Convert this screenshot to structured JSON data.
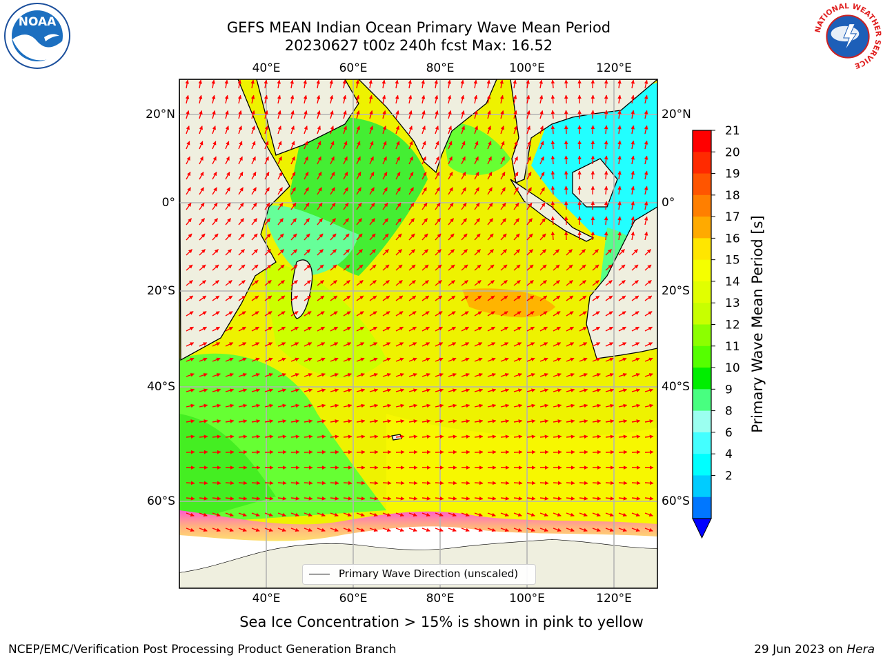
{
  "header": {
    "title_line1": "GEFS MEAN Indian Ocean Primary Wave Mean Period",
    "title_line2": "20230627 t00z 240h fcst   Max: 16.52"
  },
  "logos": {
    "left": "NOAA",
    "right": "NATIONAL WEATHER SERVICE"
  },
  "map": {
    "lon_ticks": [
      "40°E",
      "60°E",
      "80°E",
      "100°E",
      "120°E"
    ],
    "lat_ticks": [
      "20°N",
      "0°",
      "20°S",
      "40°S",
      "60°S"
    ],
    "legend_label": "Primary Wave Direction (unscaled)",
    "max_value": 16.52
  },
  "colorbar": {
    "label": "Primary Wave Mean Period [s]",
    "ticks": [
      21,
      20,
      19,
      18,
      17,
      16,
      15,
      14,
      13,
      12,
      11,
      10,
      9,
      8,
      6,
      4,
      2
    ],
    "colors": [
      "#ff0000",
      "#ff2a00",
      "#ff5500",
      "#ff7f00",
      "#ffaa00",
      "#ffe600",
      "#f5ff00",
      "#e1ff00",
      "#c8ff00",
      "#8cff00",
      "#55ff00",
      "#00ee00",
      "#48ff80",
      "#9bfff0",
      "#44ffff",
      "#00ffff",
      "#00ccff",
      "#0077ff"
    ],
    "under_color": "#0000ff"
  },
  "subtitle": "Sea Ice Concentration > 15% is shown in pink to yellow",
  "footer": {
    "left": "NCEP/EMC/Verification Post Processing Product Generation Branch",
    "right_date": "29 Jun 2023 on",
    "right_machine": "Hera"
  }
}
